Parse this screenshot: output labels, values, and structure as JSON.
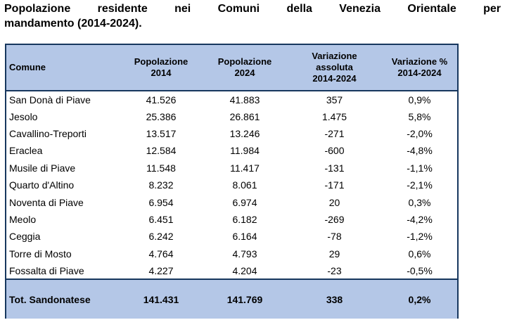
{
  "title": {
    "line1": "Popolazione residente nei Comuni della Venezia Orientale per",
    "line2": "mandamento (2014-2024)."
  },
  "colors": {
    "header_bg": "#B4C7E7",
    "table_border": "#17375E",
    "text": "#000000",
    "page_bg": "#FFFFFF"
  },
  "table": {
    "columns": [
      {
        "label": "Comune"
      },
      {
        "label": "Popolazione\n2014"
      },
      {
        "label": "Popolazione\n2024"
      },
      {
        "label": "Variazione\nassoluta\n2014-2024"
      },
      {
        "label": "Variazione %\n2014-2024"
      }
    ],
    "rows": [
      {
        "comune": "San Donà di Piave",
        "pop_2014": "41.526",
        "pop_2024": "41.883",
        "var_assoluta": "357",
        "var_percent": "0,9%"
      },
      {
        "comune": "Jesolo",
        "pop_2014": "25.386",
        "pop_2024": "26.861",
        "var_assoluta": "1.475",
        "var_percent": "5,8%"
      },
      {
        "comune": "Cavallino-Treporti",
        "pop_2014": "13.517",
        "pop_2024": "13.246",
        "var_assoluta": "-271",
        "var_percent": "-2,0%"
      },
      {
        "comune": "Eraclea",
        "pop_2014": "12.584",
        "pop_2024": "11.984",
        "var_assoluta": "-600",
        "var_percent": "-4,8%"
      },
      {
        "comune": "Musile di Piave",
        "pop_2014": "11.548",
        "pop_2024": "11.417",
        "var_assoluta": "-131",
        "var_percent": "-1,1%"
      },
      {
        "comune": "Quarto d'Altino",
        "pop_2014": "8.232",
        "pop_2024": "8.061",
        "var_assoluta": "-171",
        "var_percent": "-2,1%"
      },
      {
        "comune": "Noventa di Piave",
        "pop_2014": "6.954",
        "pop_2024": "6.974",
        "var_assoluta": "20",
        "var_percent": "0,3%"
      },
      {
        "comune": "Meolo",
        "pop_2014": "6.451",
        "pop_2024": "6.182",
        "var_assoluta": "-269",
        "var_percent": "-4,2%"
      },
      {
        "comune": "Ceggia",
        "pop_2014": "6.242",
        "pop_2024": "6.164",
        "var_assoluta": "-78",
        "var_percent": "-1,2%"
      },
      {
        "comune": "Torre di Mosto",
        "pop_2014": "4.764",
        "pop_2024": "4.793",
        "var_assoluta": "29",
        "var_percent": "0,6%"
      },
      {
        "comune": "Fossalta di Piave",
        "pop_2014": "4.227",
        "pop_2024": "4.204",
        "var_assoluta": "-23",
        "var_percent": "-0,5%"
      }
    ],
    "total": {
      "comune": "Tot. Sandonatese",
      "pop_2014": "141.431",
      "pop_2024": "141.769",
      "var_assoluta": "338",
      "var_percent": "0,2%"
    }
  },
  "chart_data": {
    "type": "table",
    "title": "Popolazione residente nei Comuni della Venezia Orientale per mandamento (2014-2024).",
    "columns": [
      "Comune",
      "Popolazione 2014",
      "Popolazione 2024",
      "Variazione assoluta 2014-2024",
      "Variazione % 2014-2024"
    ],
    "rows": [
      [
        "San Donà di Piave",
        41526,
        41883,
        357,
        "0,9%"
      ],
      [
        "Jesolo",
        25386,
        26861,
        1475,
        "5,8%"
      ],
      [
        "Cavallino-Treporti",
        13517,
        13246,
        -271,
        "-2,0%"
      ],
      [
        "Eraclea",
        12584,
        11984,
        -600,
        "-4,8%"
      ],
      [
        "Musile di Piave",
        11548,
        11417,
        -131,
        "-1,1%"
      ],
      [
        "Quarto d'Altino",
        8232,
        8061,
        -171,
        "-2,1%"
      ],
      [
        "Noventa di Piave",
        6954,
        6974,
        20,
        "0,3%"
      ],
      [
        "Meolo",
        6451,
        6182,
        -269,
        "-4,2%"
      ],
      [
        "Ceggia",
        6242,
        6164,
        -78,
        "-1,2%"
      ],
      [
        "Torre di Mosto",
        4764,
        4793,
        29,
        "0,6%"
      ],
      [
        "Fossalta di Piave",
        4227,
        4204,
        -23,
        "-0,5%"
      ],
      [
        "Tot. Sandonatese",
        141431,
        141769,
        338,
        "0,2%"
      ]
    ]
  }
}
